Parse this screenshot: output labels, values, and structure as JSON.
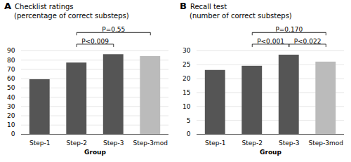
{
  "chart_data": [
    {
      "type": "bar",
      "title": "Checklist ratings",
      "subtitle": "(percentage of correct substeps)",
      "categories": [
        "Step-1",
        "Step-2",
        "Step-3",
        "Step-3mod"
      ],
      "values": [
        59,
        77,
        86,
        84
      ],
      "colors": [
        "#555555",
        "#555555",
        "#555555",
        "#bbbbbb"
      ],
      "xlabel": "Group",
      "ylim": [
        0,
        90
      ],
      "yticks": [
        0,
        10,
        20,
        30,
        40,
        50,
        60,
        70,
        80,
        90
      ],
      "grid": true,
      "annotations": [
        {
          "type": "panel_label",
          "text": "A"
        },
        {
          "type": "bracket",
          "from": "Step-2",
          "to": "Step-3",
          "text": "P<0.009"
        },
        {
          "type": "bracket",
          "from": "Step-2",
          "to": "Step-3mod",
          "text": "P=0.55"
        }
      ]
    },
    {
      "type": "bar",
      "title": "Recall test",
      "subtitle": "(number of correct substeps)",
      "categories": [
        "Step-1",
        "Step-2",
        "Step-3",
        "Step-3mod"
      ],
      "values": [
        23,
        24.5,
        28.5,
        26
      ],
      "colors": [
        "#555555",
        "#555555",
        "#555555",
        "#bbbbbb"
      ],
      "xlabel": "Group",
      "ylim": [
        0,
        30
      ],
      "yticks": [
        0,
        5,
        10,
        15,
        20,
        25,
        30
      ],
      "grid": true,
      "annotations": [
        {
          "type": "panel_label",
          "text": "B"
        },
        {
          "type": "bracket",
          "from": "Step-2",
          "to": "Step-3",
          "text": "P<0.001"
        },
        {
          "type": "bracket",
          "from": "Step-3",
          "to": "Step-3mod",
          "text": "P<0.022"
        },
        {
          "type": "bracket",
          "from": "Step-2",
          "to": "Step-3mod",
          "text": "P=0.170"
        }
      ]
    }
  ]
}
